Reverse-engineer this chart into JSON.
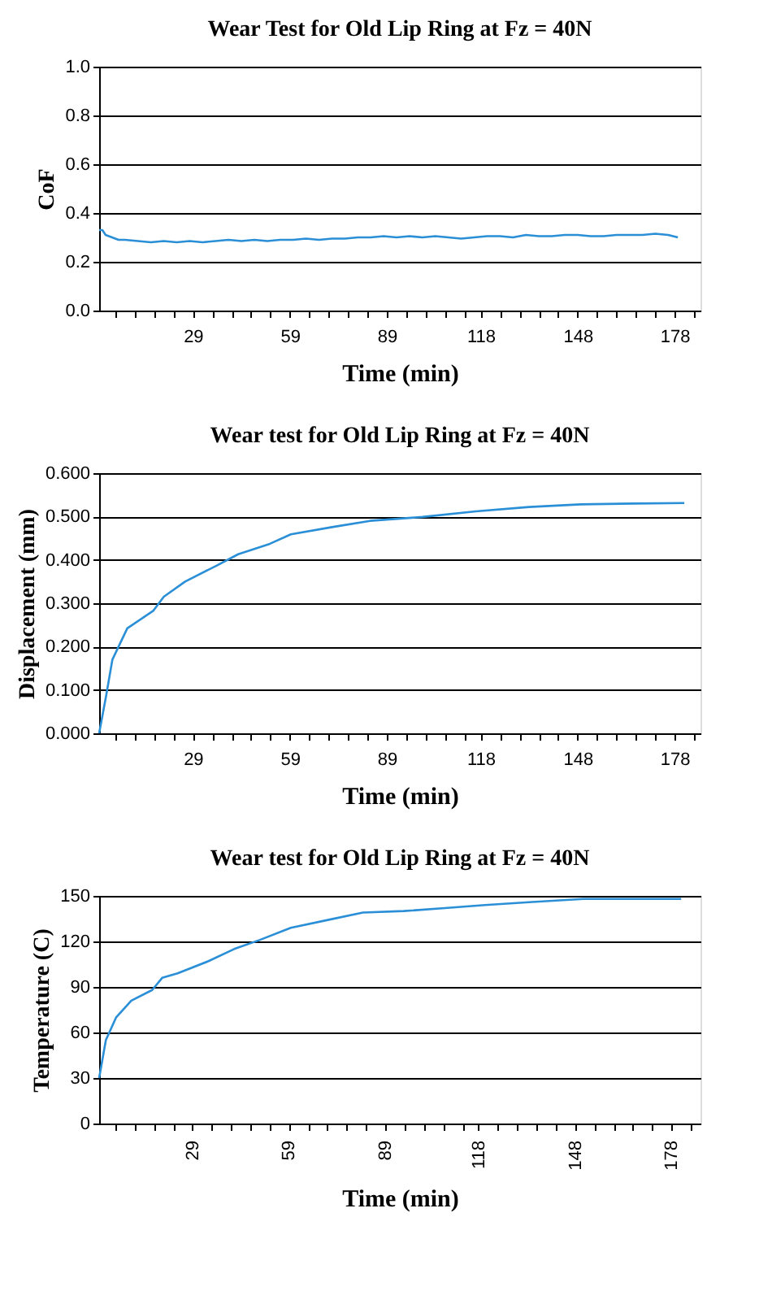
{
  "chart_data": [
    {
      "type": "line",
      "title": "Wear Test for Old Lip Ring at Fz = 40N",
      "xlabel": "Time (min)",
      "ylabel": "CoF",
      "x": [
        0,
        1,
        2,
        4,
        6,
        8,
        12,
        16,
        20,
        24,
        28,
        32,
        36,
        40,
        44,
        48,
        52,
        56,
        60,
        64,
        68,
        72,
        76,
        80,
        84,
        88,
        92,
        96,
        100,
        104,
        108,
        112,
        116,
        120,
        124,
        128,
        132,
        136,
        140,
        144,
        148,
        152,
        156,
        160,
        164,
        168,
        172,
        176,
        179
      ],
      "series": [
        {
          "color": "#2a8fd6",
          "values": [
            0.33,
            0.33,
            0.31,
            0.3,
            0.29,
            0.29,
            0.285,
            0.28,
            0.285,
            0.28,
            0.285,
            0.28,
            0.285,
            0.29,
            0.285,
            0.29,
            0.285,
            0.29,
            0.29,
            0.295,
            0.29,
            0.295,
            0.295,
            0.3,
            0.3,
            0.305,
            0.3,
            0.305,
            0.3,
            0.305,
            0.3,
            0.295,
            0.3,
            0.305,
            0.305,
            0.3,
            0.31,
            0.305,
            0.305,
            0.31,
            0.31,
            0.305,
            0.305,
            0.31,
            0.31,
            0.31,
            0.315,
            0.31,
            0.3
          ]
        }
      ],
      "xlim": [
        0,
        186
      ],
      "ylim": [
        0,
        1
      ],
      "xticks": [
        {
          "value": 5,
          "label": null
        },
        {
          "value": 11,
          "label": null
        },
        {
          "value": 17,
          "label": null
        },
        {
          "value": 23,
          "label": null
        },
        29,
        {
          "value": 35,
          "label": null
        },
        {
          "value": 41,
          "label": null
        },
        {
          "value": 47,
          "label": null
        },
        {
          "value": 53,
          "label": null
        },
        59,
        {
          "value": 65,
          "label": null
        },
        {
          "value": 71,
          "label": null
        },
        {
          "value": 77,
          "label": null
        },
        {
          "value": 83,
          "label": null
        },
        89,
        {
          "value": 95,
          "label": null
        },
        {
          "value": 101,
          "label": null
        },
        {
          "value": 107,
          "label": null
        },
        {
          "value": 113,
          "label": null
        },
        118,
        {
          "value": 124,
          "label": null
        },
        {
          "value": 130,
          "label": null
        },
        {
          "value": 136,
          "label": null
        },
        {
          "value": 142,
          "label": null
        },
        148,
        {
          "value": 154,
          "label": null
        },
        {
          "value": 160,
          "label": null
        },
        {
          "value": 166,
          "label": null
        },
        {
          "value": 172,
          "label": null
        },
        178,
        {
          "value": 184,
          "label": null
        }
      ],
      "yticks": [
        {
          "value": 0,
          "label": "0.0"
        },
        {
          "value": 0.2,
          "label": "0.2"
        },
        {
          "value": 0.4,
          "label": "0.4"
        },
        {
          "value": 0.6,
          "label": "0.6"
        },
        {
          "value": 0.8,
          "label": "0.8"
        },
        {
          "value": 1,
          "label": "1.0"
        }
      ],
      "grid": "y",
      "marker": "none",
      "line_style": "solid"
    },
    {
      "type": "line",
      "title": "Wear test for Old Lip Ring at Fz = 40N",
      "xlabel": "Time (min)",
      "ylabel": "Displacement (mm)",
      "x": [
        0,
        2.1,
        4.1,
        8.7,
        16.8,
        20,
        26.6,
        36.4,
        43,
        52.8,
        59.3,
        72.4,
        83.8,
        100,
        116.5,
        133,
        149,
        165.5,
        181
      ],
      "series": [
        {
          "color": "#2a8fd6",
          "values": [
            0,
            0.084,
            0.17,
            0.242,
            0.283,
            0.315,
            0.35,
            0.387,
            0.413,
            0.437,
            0.459,
            0.476,
            0.49,
            0.499,
            0.512,
            0.522,
            0.528,
            0.53,
            0.531
          ]
        }
      ],
      "xlim": [
        0,
        186
      ],
      "ylim": [
        0,
        0.6
      ],
      "xticks": [
        {
          "value": 5,
          "label": null
        },
        {
          "value": 11,
          "label": null
        },
        {
          "value": 17,
          "label": null
        },
        {
          "value": 23,
          "label": null
        },
        29,
        {
          "value": 35,
          "label": null
        },
        {
          "value": 41,
          "label": null
        },
        {
          "value": 47,
          "label": null
        },
        {
          "value": 53,
          "label": null
        },
        59,
        {
          "value": 65,
          "label": null
        },
        {
          "value": 71,
          "label": null
        },
        {
          "value": 77,
          "label": null
        },
        {
          "value": 83,
          "label": null
        },
        89,
        {
          "value": 95,
          "label": null
        },
        {
          "value": 101,
          "label": null
        },
        {
          "value": 107,
          "label": null
        },
        {
          "value": 113,
          "label": null
        },
        118,
        {
          "value": 124,
          "label": null
        },
        {
          "value": 130,
          "label": null
        },
        {
          "value": 136,
          "label": null
        },
        {
          "value": 142,
          "label": null
        },
        148,
        {
          "value": 154,
          "label": null
        },
        {
          "value": 160,
          "label": null
        },
        {
          "value": 166,
          "label": null
        },
        {
          "value": 172,
          "label": null
        },
        178,
        {
          "value": 184,
          "label": null
        }
      ],
      "yticks": [
        {
          "value": 0,
          "label": "0.000"
        },
        {
          "value": 0.1,
          "label": "0.100"
        },
        {
          "value": 0.2,
          "label": "0.200"
        },
        {
          "value": 0.3,
          "label": "0.300"
        },
        {
          "value": 0.4,
          "label": "0.400"
        },
        {
          "value": 0.5,
          "label": "0.500"
        },
        {
          "value": 0.6,
          "label": "0.600"
        }
      ],
      "grid": "y",
      "marker": "none",
      "line_style": "solid"
    },
    {
      "type": "line",
      "title": "Wear test for Old Lip Ring at Fz = 40N",
      "xlabel": "Time (min)",
      "ylabel": "Temperature (C)",
      "x": [
        0,
        2.1,
        5.3,
        10,
        16.5,
        19.6,
        24.4,
        34,
        42,
        50,
        59.6,
        70.8,
        82,
        94.7,
        107.5,
        120,
        134.7,
        150.6,
        166.6,
        181
      ],
      "series": [
        {
          "color": "#2a8fd6",
          "values": [
            30,
            55,
            70,
            81,
            88,
            96,
            99,
            107,
            115,
            121,
            129,
            134,
            139,
            140,
            142,
            144,
            146,
            148,
            148,
            148
          ]
        }
      ],
      "xlim": [
        0,
        187
      ],
      "ylim": [
        0,
        150
      ],
      "xticks": [
        {
          "value": 5,
          "label": null
        },
        {
          "value": 11,
          "label": null
        },
        {
          "value": 17,
          "label": null
        },
        {
          "value": 23,
          "label": null
        },
        29,
        {
          "value": 35,
          "label": null
        },
        {
          "value": 41,
          "label": null
        },
        {
          "value": 47,
          "label": null
        },
        {
          "value": 53,
          "label": null
        },
        59,
        {
          "value": 65,
          "label": null
        },
        {
          "value": 71,
          "label": null
        },
        {
          "value": 77,
          "label": null
        },
        {
          "value": 83,
          "label": null
        },
        89,
        {
          "value": 95,
          "label": null
        },
        {
          "value": 101,
          "label": null
        },
        {
          "value": 107,
          "label": null
        },
        {
          "value": 113,
          "label": null
        },
        118,
        {
          "value": 124,
          "label": null
        },
        {
          "value": 130,
          "label": null
        },
        {
          "value": 136,
          "label": null
        },
        {
          "value": 142,
          "label": null
        },
        148,
        {
          "value": 154,
          "label": null
        },
        {
          "value": 160,
          "label": null
        },
        {
          "value": 166,
          "label": null
        },
        {
          "value": 172,
          "label": null
        },
        178,
        {
          "value": 184,
          "label": null
        }
      ],
      "yticks": [
        0,
        30,
        60,
        90,
        120,
        150
      ],
      "grid": "y",
      "marker": "none",
      "line_style": "solid"
    }
  ]
}
